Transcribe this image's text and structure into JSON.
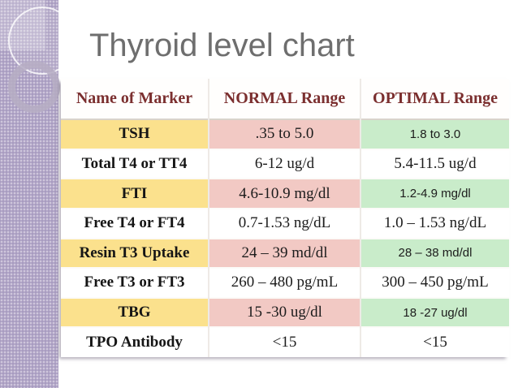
{
  "slide": {
    "title": "Thyroid level chart"
  },
  "table": {
    "columns": [
      "Name of Marker",
      "NORMAL Range",
      "OPTIMAL Range"
    ],
    "rows": [
      {
        "marker": "TSH",
        "normal": ".35 to 5.0",
        "optimal": "1.8 to 3.0"
      },
      {
        "marker": "Total T4 or TT4",
        "normal": "6-12 ug/d",
        "optimal": "5.4-11.5 ug/d"
      },
      {
        "marker": "FTI",
        "normal": "4.6-10.9 mg/dl",
        "optimal": "1.2-4.9 mg/dl"
      },
      {
        "marker": "Free T4 or FT4",
        "normal": "0.7-1.53 ng/dL",
        "optimal": "1.0 – 1.53 ng/dL"
      },
      {
        "marker": "Resin T3 Uptake",
        "normal": "24 – 39 md/dl",
        "optimal": "28 – 38 md/dl"
      },
      {
        "marker": "Free T3 or FT3",
        "normal": "260 – 480 pg/mL",
        "optimal": "300 – 450 pg/mL"
      },
      {
        "marker": "TBG",
        "normal": "15 -30 ug/dl",
        "optimal": "18 -27 ug/dl"
      },
      {
        "marker": "TPO Antibody",
        "normal": "<15",
        "optimal": "<15"
      }
    ]
  },
  "colors": {
    "marker_highlight": "#fbe18d",
    "normal_highlight": "#f2c9c4",
    "optimal_highlight": "#c9ecca",
    "header_text": "#7b2f2f",
    "title_text": "#6e6e6e",
    "sidebar_purple": "#b2a6c7"
  }
}
